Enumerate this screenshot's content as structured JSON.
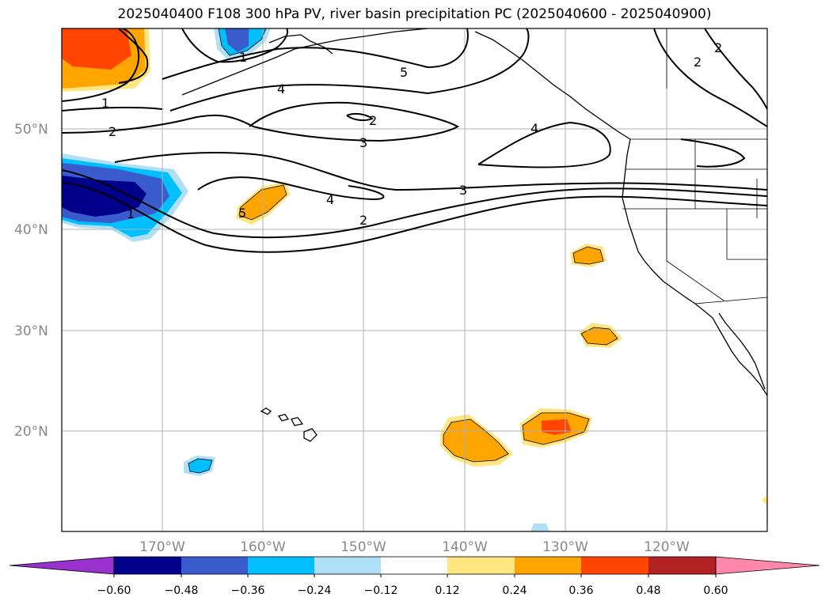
{
  "title": "2025040400 F108 300 hPa PV, river basin precipitation PC (2025040600 - 2025040900)",
  "map": {
    "lat_ticks": [
      {
        "id": "50",
        "label": "50°N"
      },
      {
        "id": "40",
        "label": "40°N"
      },
      {
        "id": "30",
        "label": "30°N"
      },
      {
        "id": "20",
        "label": "20°N"
      }
    ],
    "lon_ticks": [
      {
        "id": "170w",
        "label": "170°W"
      },
      {
        "id": "160w",
        "label": "160°W"
      },
      {
        "id": "150w",
        "label": "150°W"
      },
      {
        "id": "140w",
        "label": "140°W"
      },
      {
        "id": "130w",
        "label": "130°W"
      },
      {
        "id": "120w",
        "label": "120°W"
      }
    ],
    "contour_labels": [
      "1",
      "1",
      "1",
      "2",
      "2",
      "2",
      "2",
      "2",
      "3",
      "3",
      "4",
      "4",
      "4",
      "5",
      "5"
    ]
  },
  "colorbar": {
    "colors": [
      "#9932cc",
      "#00008b",
      "#3a5bcc",
      "#00bfff",
      "#b0e0f8",
      "#ffffff",
      "#ffe680",
      "#ffa500",
      "#ff4500",
      "#b22222",
      "#ff88aa"
    ],
    "ticks": [
      "−0.60",
      "−0.48",
      "−0.36",
      "−0.24",
      "−0.12",
      "0.12",
      "0.24",
      "0.36",
      "0.48",
      "0.60"
    ]
  }
}
